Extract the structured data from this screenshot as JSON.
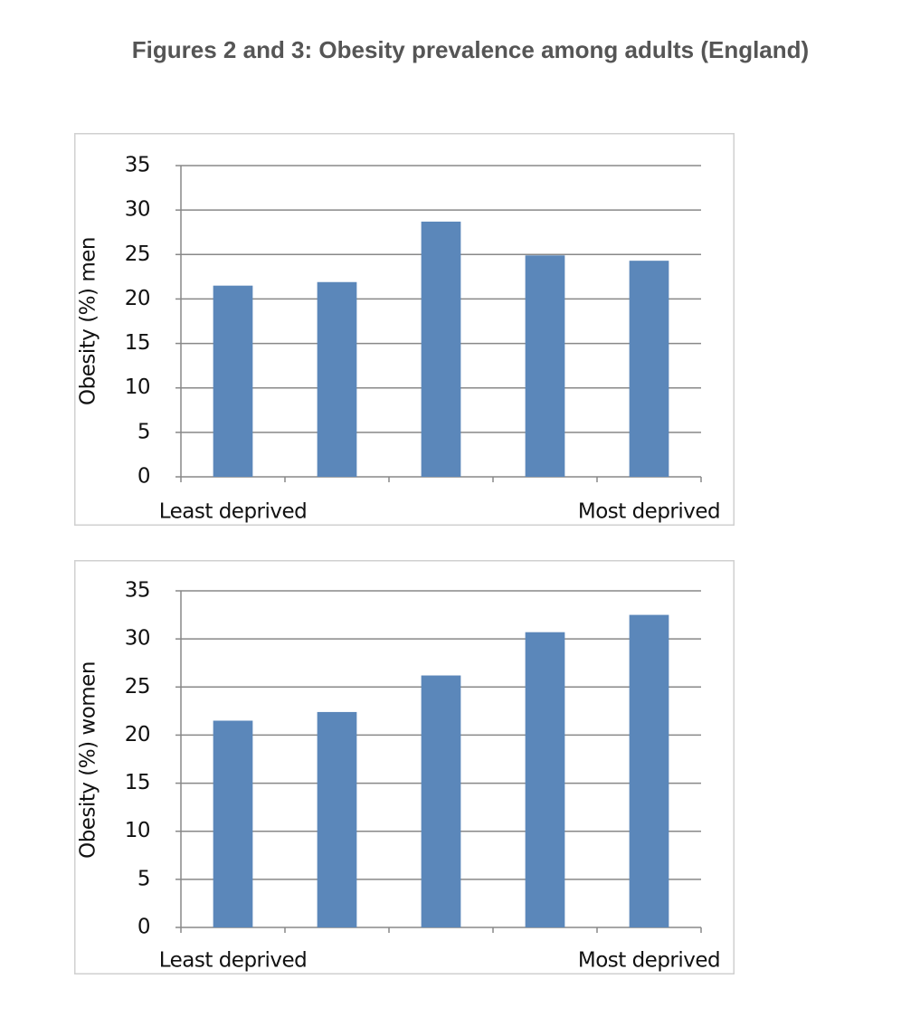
{
  "title": "Figures 2 and 3: Obesity prevalence among adults (England)",
  "chart_data": [
    {
      "type": "bar",
      "ylabel": "Obesity (%) men",
      "categories": [
        "Least deprived",
        null,
        null,
        null,
        "Most deprived"
      ],
      "values": [
        21.5,
        21.9,
        28.7,
        24.9,
        24.3
      ],
      "color": "#5b87ba",
      "ylim": [
        0,
        35
      ],
      "yticks": [
        0,
        5,
        10,
        15,
        20,
        25,
        30,
        35
      ],
      "grid": true
    },
    {
      "type": "bar",
      "ylabel": "Obesity (%) women",
      "categories": [
        "Least deprived",
        null,
        null,
        null,
        "Most deprived"
      ],
      "values": [
        21.5,
        22.4,
        26.2,
        30.7,
        32.5
      ],
      "color": "#5b87ba",
      "ylim": [
        0,
        35
      ],
      "yticks": [
        0,
        5,
        10,
        15,
        20,
        25,
        30,
        35
      ],
      "grid": true
    }
  ]
}
